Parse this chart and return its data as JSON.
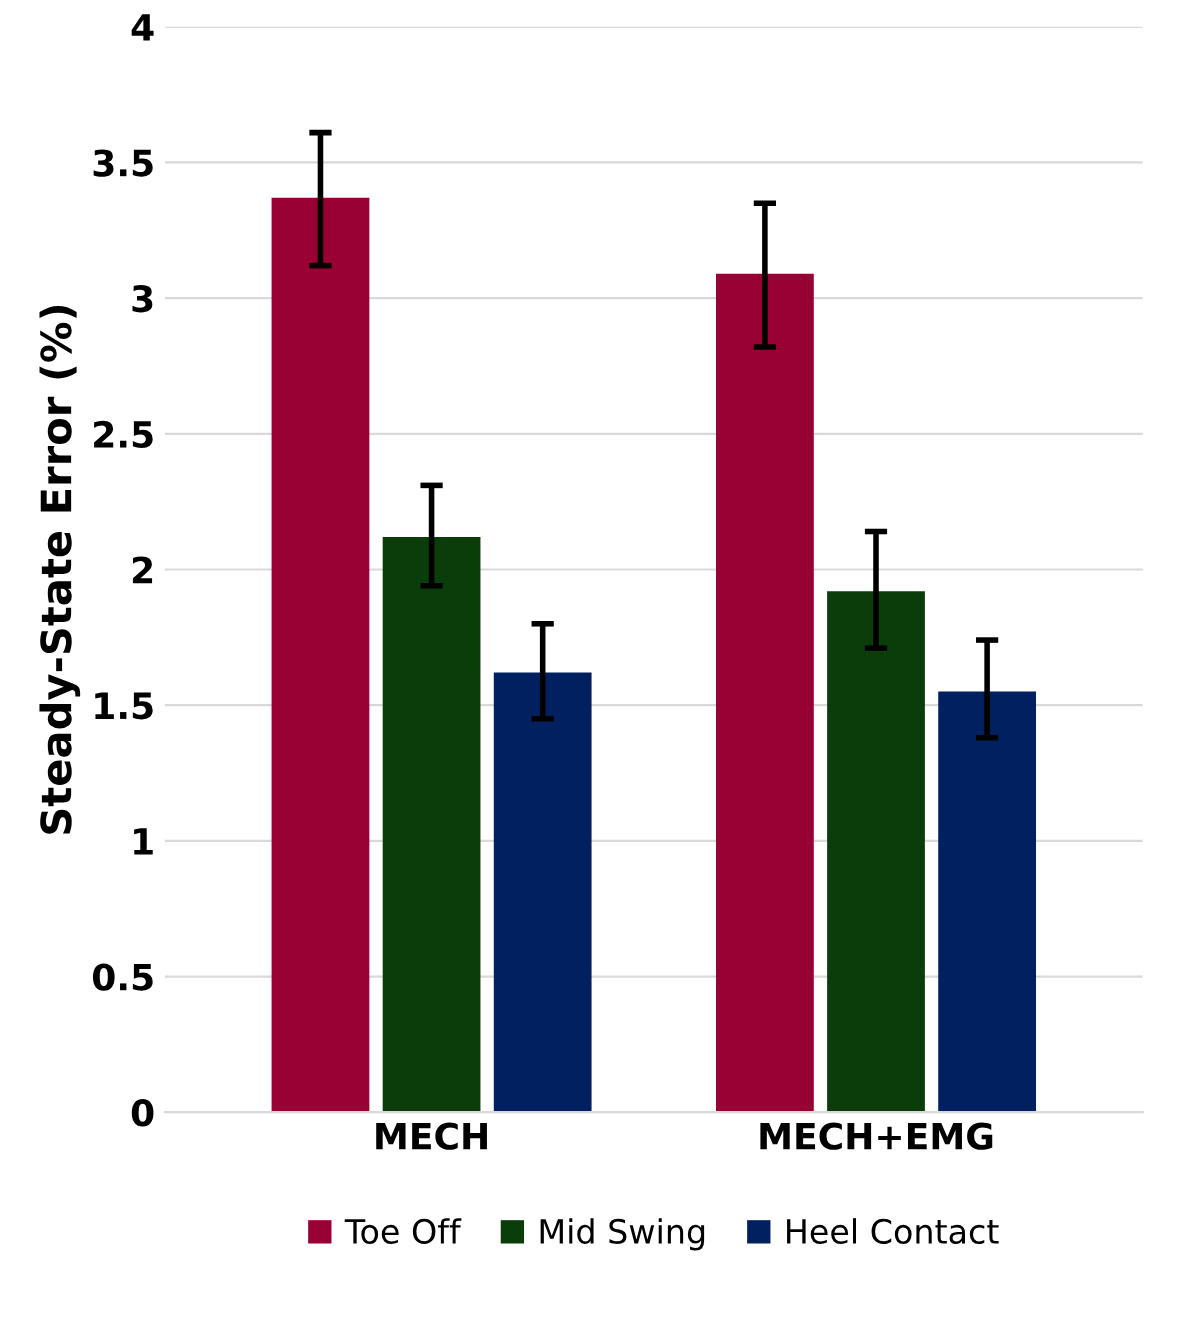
{
  "chart_data": {
    "type": "bar",
    "ylabel": "Steady-State Error (%)",
    "categories": [
      "MECH",
      "MECH+EMG"
    ],
    "series": [
      {
        "name": "Toe Off",
        "color": "#990033",
        "values": [
          3.37,
          3.09
        ],
        "errors": [
          [
            3.12,
            3.61
          ],
          [
            2.82,
            3.35
          ]
        ]
      },
      {
        "name": "Mid Swing",
        "color": "#0b3d0b",
        "values": [
          2.12,
          1.92
        ],
        "errors": [
          [
            1.94,
            2.31
          ],
          [
            1.71,
            2.14
          ]
        ]
      },
      {
        "name": "Heel Contact",
        "color": "#002060",
        "values": [
          1.62,
          1.55
        ],
        "errors": [
          [
            1.45,
            1.8
          ],
          [
            1.38,
            1.74
          ]
        ]
      }
    ],
    "ylim": [
      0,
      4
    ],
    "yticks": [
      0,
      0.5,
      1,
      1.5,
      2,
      2.5,
      3,
      3.5,
      4
    ],
    "grid": "y",
    "legend": "bottom"
  }
}
